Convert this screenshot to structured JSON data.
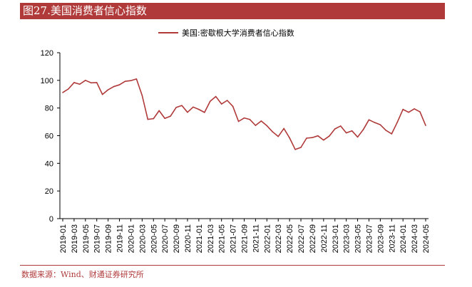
{
  "header": {
    "title": "图27.美国消费者信心指数"
  },
  "source": "数据来源：Wind、财通证券研究所",
  "chart_data": {
    "type": "line",
    "title": "",
    "xlabel": "",
    "ylabel": "",
    "ylim": [
      0,
      120
    ],
    "yticks": [
      0,
      20,
      40,
      60,
      80,
      100,
      120
    ],
    "grid": false,
    "legend": "top-center",
    "x_tick_labels": [
      "2019-01",
      "2019-03",
      "2019-05",
      "2019-07",
      "2019-09",
      "2019-11",
      "2020-01",
      "2020-03",
      "2020-05",
      "2020-07",
      "2020-09",
      "2020-11",
      "2021-01",
      "2021-03",
      "2021-05",
      "2021-07",
      "2021-09",
      "2021-11",
      "2022-01",
      "2022-03",
      "2022-05",
      "2022-07",
      "2022-09",
      "2022-11",
      "2023-01",
      "2023-03",
      "2023-05",
      "2023-07",
      "2023-09",
      "2023-11",
      "2024-01",
      "2024-03",
      "2024-05"
    ],
    "series": [
      {
        "name": "美国:密歇根大学消费者信心指数",
        "color": "#b03a3a",
        "x": [
          "2019-01",
          "2019-02",
          "2019-03",
          "2019-04",
          "2019-05",
          "2019-06",
          "2019-07",
          "2019-08",
          "2019-09",
          "2019-10",
          "2019-11",
          "2019-12",
          "2020-01",
          "2020-02",
          "2020-03",
          "2020-04",
          "2020-05",
          "2020-06",
          "2020-07",
          "2020-08",
          "2020-09",
          "2020-10",
          "2020-11",
          "2020-12",
          "2021-01",
          "2021-02",
          "2021-03",
          "2021-04",
          "2021-05",
          "2021-06",
          "2021-07",
          "2021-08",
          "2021-09",
          "2021-10",
          "2021-11",
          "2021-12",
          "2022-01",
          "2022-02",
          "2022-03",
          "2022-04",
          "2022-05",
          "2022-06",
          "2022-07",
          "2022-08",
          "2022-09",
          "2022-10",
          "2022-11",
          "2022-12",
          "2023-01",
          "2023-02",
          "2023-03",
          "2023-04",
          "2023-05",
          "2023-06",
          "2023-07",
          "2023-08",
          "2023-09",
          "2023-10",
          "2023-11",
          "2023-12",
          "2024-01",
          "2024-02",
          "2024-03",
          "2024-04",
          "2024-05"
        ],
        "values": [
          91.2,
          93.8,
          98.4,
          97.2,
          100.0,
          98.2,
          98.4,
          89.8,
          93.2,
          95.5,
          96.8,
          99.3,
          99.8,
          101.0,
          89.1,
          71.8,
          72.3,
          78.1,
          72.5,
          74.1,
          80.4,
          81.8,
          76.9,
          80.7,
          79.0,
          76.8,
          84.9,
          88.3,
          82.9,
          85.5,
          81.2,
          70.3,
          72.8,
          71.7,
          67.4,
          70.6,
          67.2,
          62.8,
          59.4,
          65.2,
          58.4,
          50.0,
          51.5,
          58.2,
          58.6,
          59.9,
          56.8,
          59.7,
          64.9,
          67.0,
          62.0,
          63.5,
          59.0,
          64.4,
          71.5,
          69.5,
          67.9,
          63.8,
          61.3,
          69.7,
          79.0,
          76.9,
          79.4,
          77.2,
          67.4
        ]
      }
    ]
  }
}
